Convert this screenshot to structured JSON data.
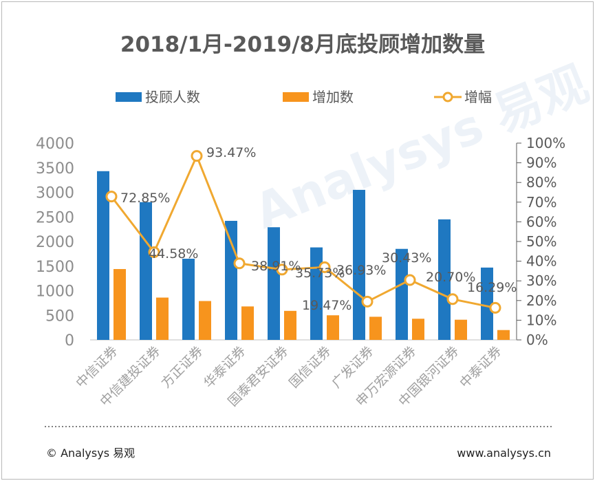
{
  "chart_data": {
    "type": "bar",
    "title": "2018/1月-2019/8月底投顾增加数量",
    "categories": [
      "中信证券",
      "中信建投证券",
      "方正证券",
      "华泰证券",
      "国泰君安证券",
      "国信证券",
      "广发证券",
      "申万宏源证券",
      "中国银河证券",
      "中泰证券"
    ],
    "series": [
      {
        "name": "投顾人数",
        "type": "bar",
        "axis": "left",
        "color": "#1f78c1",
        "values": [
          3430,
          2800,
          1650,
          2420,
          2290,
          1880,
          3050,
          1850,
          2450,
          1470
        ]
      },
      {
        "name": "增加数",
        "type": "bar",
        "axis": "left",
        "color": "#f7941d",
        "values": [
          1440,
          860,
          790,
          680,
          590,
          500,
          470,
          430,
          410,
          200
        ]
      },
      {
        "name": "增幅",
        "type": "line",
        "axis": "right",
        "color": "#f0a830",
        "values": [
          72.85,
          44.58,
          93.47,
          38.91,
          35.73,
          36.93,
          19.47,
          30.43,
          20.7,
          16.29
        ]
      }
    ],
    "data_labels": [
      "72.85%",
      "44.58%",
      "93.47%",
      "38.91%",
      "35.73%",
      "36.93%",
      "19.47%",
      "30.43%",
      "20.70%",
      "16.29%"
    ],
    "left_axis": {
      "min": 0,
      "max": 4000,
      "ticks": [
        0,
        500,
        1000,
        1500,
        2000,
        2500,
        3000,
        3500,
        4000
      ]
    },
    "right_axis": {
      "min": 0,
      "max": 100,
      "ticks": [
        "0%",
        "10%",
        "20%",
        "30%",
        "40%",
        "50%",
        "60%",
        "70%",
        "80%",
        "90%",
        "100%"
      ]
    },
    "legend": [
      "投顾人数",
      "增加数",
      "增幅"
    ],
    "legend_position": "top"
  },
  "footer": {
    "left": "© Analysys 易观",
    "right": "www.analysys.cn"
  },
  "watermark": "Analysys 易观"
}
